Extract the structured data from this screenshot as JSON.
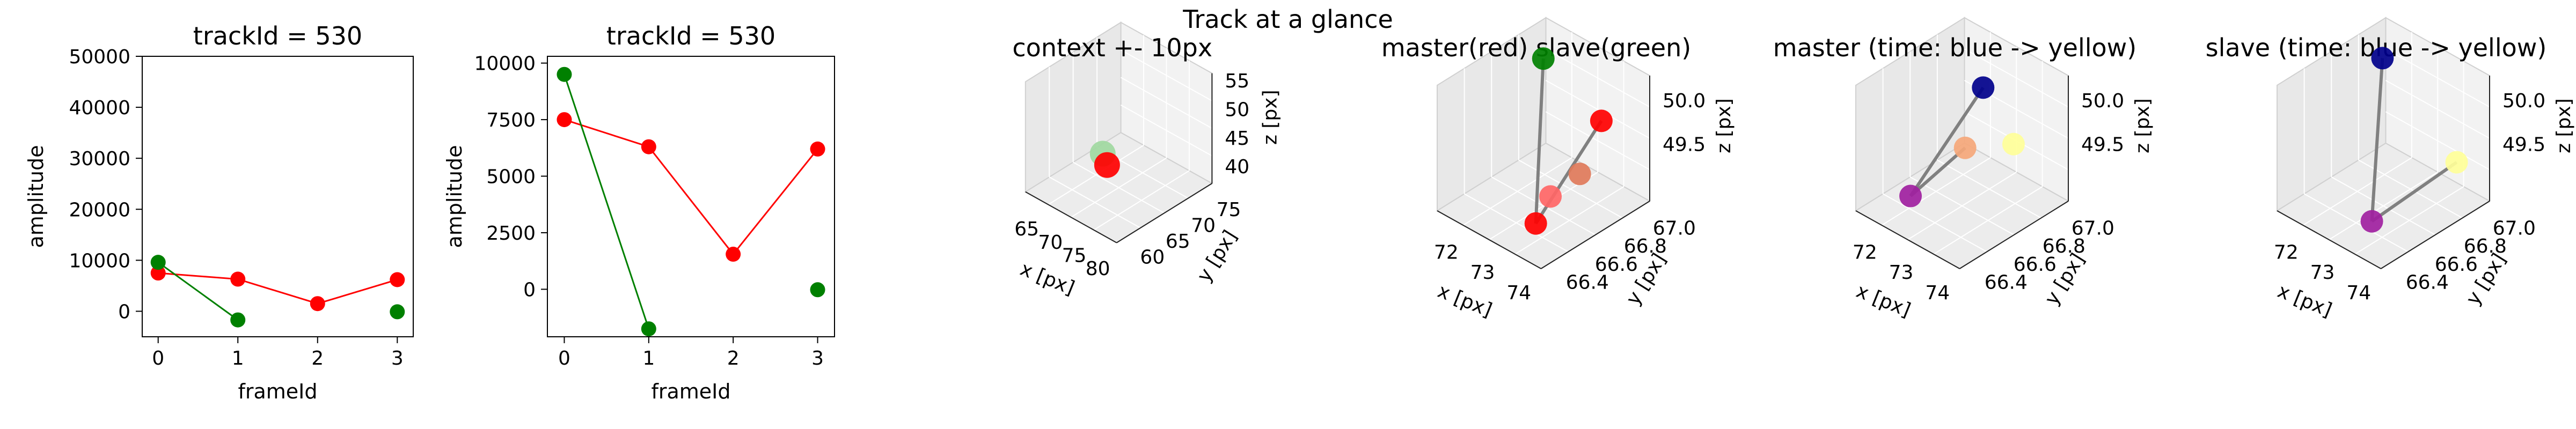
{
  "suptitle": "Track at a glance",
  "chart_data": [
    {
      "type": "line",
      "title": "trackId = 530",
      "xlabel": "frameId",
      "ylabel": "amplitude",
      "xlim": [
        -0.2,
        3.2
      ],
      "ylim": [
        -5000,
        50000
      ],
      "xticks": [
        0,
        1,
        2,
        3
      ],
      "yticks": [
        0,
        10000,
        20000,
        30000,
        40000,
        50000
      ],
      "series": [
        {
          "color": "#ff0000",
          "x": [
            0,
            1,
            2,
            3
          ],
          "y": [
            7500,
            6300,
            1500,
            6200
          ]
        },
        {
          "color": "#008000",
          "x": [
            0,
            1
          ],
          "y": [
            9600,
            -1700
          ]
        },
        {
          "color": "#008000",
          "x": [
            3
          ],
          "y": [
            -100
          ],
          "markerOnly": true
        }
      ]
    },
    {
      "type": "line",
      "title": "trackId = 530",
      "xlabel": "frameId",
      "ylabel": "amplitude",
      "xlim": [
        -0.2,
        3.2
      ],
      "ylim": [
        -2100,
        10300
      ],
      "xticks": [
        0,
        1,
        2,
        3
      ],
      "yticks": [
        0,
        2500,
        5000,
        7500,
        10000
      ],
      "series": [
        {
          "color": "#ff0000",
          "x": [
            0,
            1,
            2,
            3
          ],
          "y": [
            7500,
            6300,
            1550,
            6200
          ]
        },
        {
          "color": "#008000",
          "x": [
            0,
            1
          ],
          "y": [
            9500,
            -1750
          ]
        },
        {
          "color": "#008000",
          "x": [
            3
          ],
          "y": [
            -20
          ],
          "markerOnly": true
        }
      ]
    },
    {
      "type": "scatter",
      "title": "context +- 10px",
      "xlabel": "x [px]",
      "ylabel": "y [px]",
      "zlabel": "z [px]",
      "xticks": [
        "65",
        "70",
        "75",
        "80"
      ],
      "yticks": [
        "60",
        "65",
        "70",
        "75"
      ],
      "zticks": [
        "40",
        "45",
        "50",
        "55"
      ],
      "points": [
        {
          "x": 73,
          "y": 67,
          "z": 50,
          "color": "#9fd89f"
        },
        {
          "x": 74,
          "y": 66.5,
          "z": 50,
          "color": "#ff0000"
        }
      ]
    },
    {
      "type": "scatter",
      "title": "master(red) slave(green)",
      "xlabel": "x [px]",
      "ylabel": "y [px]",
      "zlabel": "z [px]",
      "xticks": [
        "72",
        "73",
        "74"
      ],
      "yticks": [
        "66.4",
        "66.6",
        "66.8",
        "67.0"
      ],
      "zticks": [
        "49.5",
        "50.0"
      ],
      "points": [
        {
          "x": 71.5,
          "y": 67.0,
          "z": 50.1,
          "color": "#008000"
        },
        {
          "x": 74.0,
          "y": 66.4,
          "z": 49.3,
          "color": "#ff0000"
        },
        {
          "x": 74.2,
          "y": 66.9,
          "z": 49.95,
          "color": "#ff0000"
        },
        {
          "x": 74.3,
          "y": 66.7,
          "z": 49.6,
          "color": "#e07a5a"
        },
        {
          "x": 74.1,
          "y": 66.5,
          "z": 49.5,
          "color": "#ff6666"
        }
      ]
    },
    {
      "type": "scatter",
      "title": "master (time: blue -> yellow)",
      "xlabel": "x [px]",
      "ylabel": "y [px]",
      "zlabel": "z [px]",
      "xticks": [
        "72",
        "73",
        "74"
      ],
      "yticks": [
        "66.4",
        "66.6",
        "66.8",
        "67.0"
      ],
      "zticks": [
        "49.5",
        "50.0"
      ],
      "points": [
        {
          "x": 74.2,
          "y": 66.9,
          "z": 49.95,
          "color": "#00008b"
        },
        {
          "x": 74.0,
          "y": 66.4,
          "z": 49.3,
          "color": "#a020a0"
        },
        {
          "x": 74.3,
          "y": 66.7,
          "z": 49.6,
          "color": "#f5a77a"
        },
        {
          "x": 74.5,
          "y": 67.0,
          "z": 49.5,
          "color": "#ffff99"
        }
      ]
    },
    {
      "type": "scatter",
      "title": "slave (time: blue -> yellow)",
      "xlabel": "x [px]",
      "ylabel": "y [px]",
      "zlabel": "z [px]",
      "xticks": [
        "72",
        "73",
        "74"
      ],
      "yticks": [
        "66.4",
        "66.6",
        "66.8",
        "67.0"
      ],
      "zticks": [
        "49.5",
        "50.0"
      ],
      "points": [
        {
          "x": 71.5,
          "y": 67.0,
          "z": 50.1,
          "color": "#00008b"
        },
        {
          "x": 74.0,
          "y": 66.4,
          "z": 49.3,
          "color": "#a020a0"
        },
        {
          "x": 74.5,
          "y": 67.0,
          "z": 49.5,
          "color": "#ffff99"
        }
      ]
    }
  ]
}
